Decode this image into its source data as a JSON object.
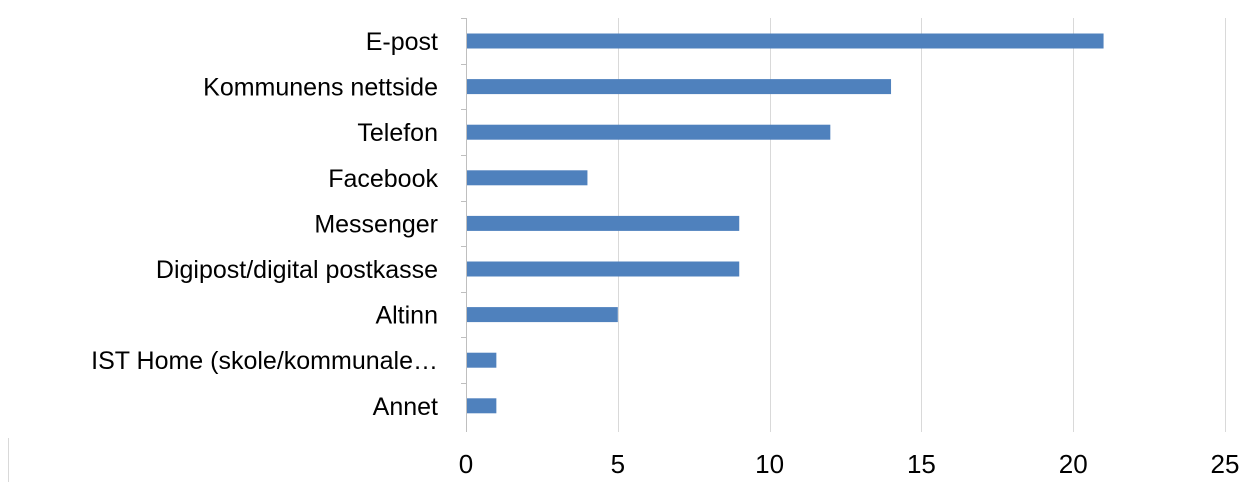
{
  "chart_data": {
    "type": "bar",
    "orientation": "horizontal",
    "categories": [
      "E-post",
      "Kommunens nettside",
      "Telefon",
      "Facebook",
      "Messenger",
      "Digipost/digital postkasse",
      "Altinn",
      "IST Home (skole/kommunale…",
      "Annet"
    ],
    "values": [
      21,
      14,
      12,
      4,
      9,
      9,
      5,
      1,
      1
    ],
    "xlim": [
      0,
      25
    ],
    "x_ticks": [
      "0",
      "5",
      "10",
      "15",
      "20",
      "25"
    ],
    "grid": true,
    "title": "",
    "xlabel": "",
    "ylabel": "",
    "colors": {
      "bar": "#4f81bd",
      "grid": "#d9d9d9",
      "axis": "#bfbfbf",
      "text": "#000000"
    }
  }
}
